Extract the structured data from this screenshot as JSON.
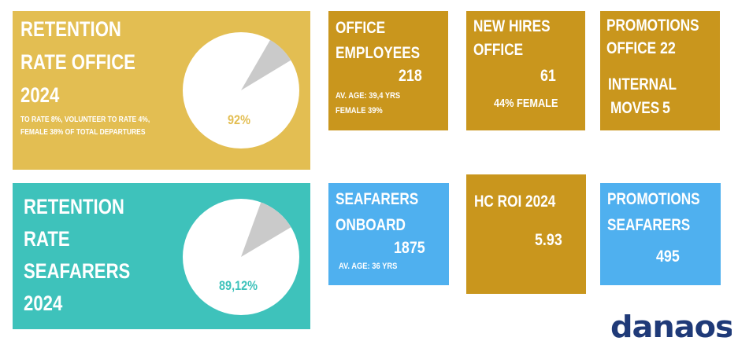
{
  "colors": {
    "office_large": "#E3BE52",
    "office_tile": "#C9961D",
    "seafarer_large": "#3EC2BB",
    "seafarer_tile": "#4FB0EF",
    "pie_main": "#FFFFFF",
    "pie_slice": "#CACACA",
    "logo": "#1F3A78"
  },
  "retention_office": {
    "title_lines": [
      "RETENTION",
      "RATE OFFICE",
      "2024"
    ],
    "note_line1": "TO RATE 8%, VOLUNTEER TO RATE 4%,",
    "note_line2": "FEMALE  38%  OF TOTAL DEPARTURES",
    "percent_label": "92%",
    "retention_fraction": 0.92
  },
  "retention_seafarers": {
    "title_lines": [
      "RETENTION",
      "RATE",
      "SEAFARERS",
      "2024"
    ],
    "percent_label": "89,12%",
    "retention_fraction": 0.8912
  },
  "office_employees": {
    "title_line1": "OFFICE",
    "title_line2": "EMPLOYEES",
    "value": "218",
    "detail_line1": "AV. AGE: 39,4 YRS",
    "detail_line2": "FEMALE 39%"
  },
  "new_hires": {
    "title_line1": "NEW HIRES",
    "title_line2": "OFFICE",
    "value": "61",
    "detail": "44% FEMALE"
  },
  "promotions_office": {
    "title_line1": "PROMOTIONS",
    "title_line2": "OFFICE",
    "value": "22",
    "internal_line1": "INTERNAL",
    "internal_line2": "MOVES",
    "internal_value": "5"
  },
  "seafarers_onboard": {
    "title_line1": "SEAFARERS",
    "title_line2": "ONBOARD",
    "value": "1875",
    "detail": "AV. AGE: 36 YRS"
  },
  "hc_roi": {
    "title": "HC ROI 2024",
    "value": "5.93"
  },
  "promotions_seafarers": {
    "title_line1": "PROMOTIONS",
    "title_line2": "SEAFARERS",
    "value": "495"
  },
  "logo": {
    "text": "danaos"
  }
}
